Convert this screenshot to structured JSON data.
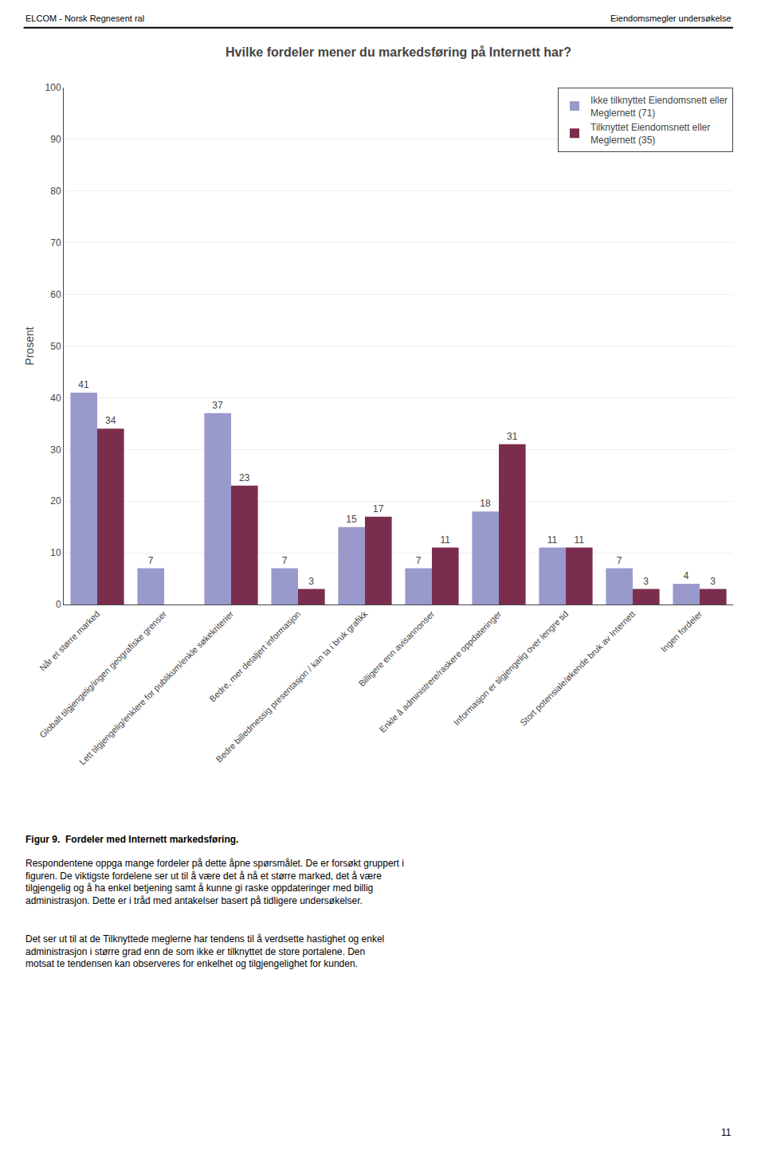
{
  "chart_data": {
    "type": "bar",
    "title": "Hvilke fordeler mener du markedsføring på Internett har?",
    "ylabel": "Prosent",
    "categories": [
      "Når et større marked",
      "Globalt tilgjengelig/ingen geografiske grenser",
      "Lett tilgjengelig/enklere for publikum/enkle søkekriterier",
      "Bedre, mer detaljert informasjon",
      "Bedre billedmessig presentasjon / kan ta i bruk grafikk",
      "Billigere enn avisannonser",
      "Enkle å administrere/raskere oppdateringer",
      "Informasjon er tilgjengelig over lengre tid",
      "Stort potensiale/økende bruk av Internett",
      "Ingen fordeler"
    ],
    "series": [
      {
        "name": "Ikke tilknyttet Eiendomsnett eller\nMeglernett (71)",
        "color": "#9999cc",
        "values": [
          41,
          7,
          37,
          7,
          15,
          7,
          18,
          11,
          7,
          4
        ]
      },
      {
        "name": "Tilknyttet Eiendomsnett eller\nMeglernett (35)",
        "color": "#7b2d4e",
        "values": [
          34,
          0,
          23,
          3,
          17,
          11,
          31,
          11,
          3,
          3
        ]
      }
    ],
    "ylim": [
      0,
      100
    ],
    "yticks": [
      0,
      10,
      20,
      30,
      40,
      50,
      60,
      70,
      80,
      90,
      100
    ],
    "grid": true,
    "legend": "upper right",
    "data_labels": true,
    "annotations": [
      "ELCOM - Norsk Regnesent ral",
      "Eiendomsmegler undersøkelse",
      "Figur 9.  Fordeler med Internett markedsføring.",
      "Respondentene oppga mange fordeler på dette åpne spørsmålet. De er forsøkt gruppert i\nfiguren. De viktigste fordelene ser ut til å være det å nå et større marked, det å være\ntilgjengelig og å ha enkel betjening samt å kunne gi raske oppdateringer med billig\nadministrasjon. Dette er i tråd med antakelser basert på tidligere undersøkelser.",
      "Det ser ut til at de Tilknyttede meglerne har tendens til å verdsette hastighet og enkel\nadministrasjon i større grad enn de som ikke er tilknyttet de store portalene. Den\nmotsat te tendensen kan observeres for enkelhet og tilgjengelighet for kunden.",
      "11"
    ]
  }
}
